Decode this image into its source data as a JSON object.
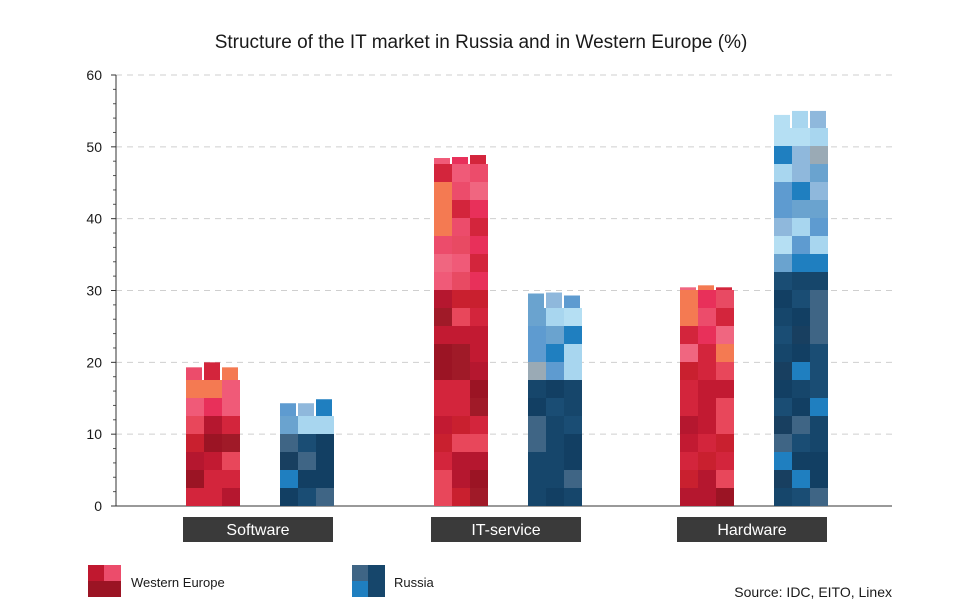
{
  "chart_data": {
    "type": "bar",
    "title": "Structure of the IT market in Russia and in Western Europe (%)",
    "categories": [
      "Software",
      "IT-service",
      "Hardware"
    ],
    "series": [
      {
        "name": "Western Europe",
        "values": [
          20,
          49,
          31
        ],
        "color": "#b5172f"
      },
      {
        "name": "Russia",
        "values": [
          15,
          30,
          55
        ],
        "color": "#16466b"
      }
    ],
    "ylim": [
      0,
      60
    ],
    "yticks": [
      0,
      10,
      20,
      30,
      40,
      50,
      60
    ],
    "grid": true,
    "legend_position": "bottom-left",
    "source": "Source: IDC, EITO, Linex"
  }
}
